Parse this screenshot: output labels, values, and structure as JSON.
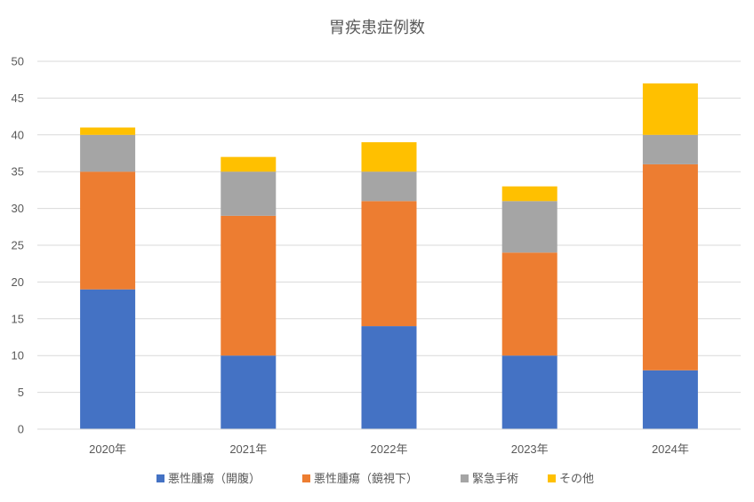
{
  "chart_data": {
    "type": "bar",
    "stacked": true,
    "title": "胃疾患症例数",
    "categories": [
      "2020年",
      "2021年",
      "2022年",
      "2023年",
      "2024年"
    ],
    "series": [
      {
        "name": "悪性腫瘍（開腹）",
        "color": "#4472C4",
        "values": [
          19,
          10,
          14,
          10,
          8
        ]
      },
      {
        "name": "悪性腫瘍（鏡視下）",
        "color": "#ED7D31",
        "values": [
          16,
          19,
          17,
          14,
          28
        ]
      },
      {
        "name": "緊急手術",
        "color": "#A5A5A5",
        "values": [
          5,
          6,
          4,
          7,
          4
        ]
      },
      {
        "name": "その他",
        "color": "#FFC000",
        "values": [
          1,
          2,
          4,
          2,
          7
        ]
      }
    ],
    "ylim": [
      0,
      50
    ],
    "yticks": [
      "0",
      "5",
      "10",
      "15",
      "20",
      "25",
      "30",
      "35",
      "40",
      "45",
      "50"
    ],
    "grid": true,
    "legend_position": "bottom"
  }
}
